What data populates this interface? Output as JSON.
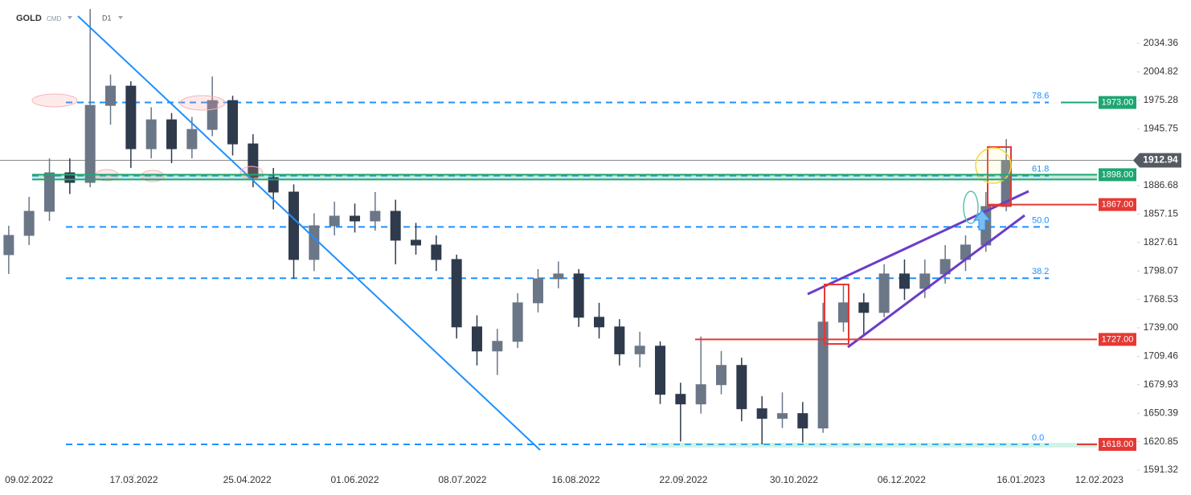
{
  "header": {
    "symbol": "GOLD",
    "market": "CMD",
    "timeframe": "D1"
  },
  "chart_data": {
    "type": "candlestick",
    "x": [
      "02.02.2022",
      "09.02.2022",
      "16.02.2022",
      "23.02.2022",
      "02.03.2022",
      "09.03.2022",
      "16.03.2022",
      "23.03.2022",
      "30.03.2022",
      "06.04.2022",
      "13.04.2022",
      "20.04.2022",
      "27.04.2022",
      "04.05.2022",
      "11.05.2022",
      "18.05.2022",
      "25.05.2022",
      "01.06.2022",
      "08.06.2022",
      "15.06.2022",
      "22.06.2022",
      "29.06.2022",
      "06.07.2022",
      "13.07.2022",
      "20.07.2022",
      "27.07.2022",
      "03.08.2022",
      "10.08.2022",
      "17.08.2022",
      "24.08.2022",
      "31.08.2022",
      "07.09.2022",
      "14.09.2022",
      "21.09.2022",
      "28.09.2022",
      "05.10.2022",
      "12.10.2022",
      "19.10.2022",
      "26.10.2022",
      "02.11.2022",
      "09.11.2022",
      "16.11.2022",
      "23.11.2022",
      "30.11.2022",
      "07.12.2022",
      "14.12.2022",
      "21.12.2022",
      "28.12.2022",
      "04.01.2023",
      "11.01.2023"
    ],
    "open": [
      1815,
      1835,
      1860,
      1900,
      1890,
      1970,
      1990,
      1925,
      1955,
      1925,
      1945,
      1975,
      1930,
      1895,
      1880,
      1810,
      1845,
      1855,
      1850,
      1860,
      1830,
      1825,
      1810,
      1740,
      1715,
      1725,
      1765,
      1790,
      1795,
      1750,
      1740,
      1712,
      1720,
      1670,
      1660,
      1680,
      1700,
      1655,
      1645,
      1650,
      1635,
      1745,
      1765,
      1755,
      1795,
      1780,
      1795,
      1810,
      1825,
      1865
    ],
    "high": [
      1845,
      1875,
      1915,
      1915,
      2070,
      2002,
      1995,
      1968,
      1962,
      1958,
      2000,
      1980,
      1940,
      1905,
      1888,
      1858,
      1870,
      1868,
      1880,
      1872,
      1848,
      1835,
      1815,
      1752,
      1738,
      1775,
      1800,
      1808,
      1800,
      1765,
      1748,
      1735,
      1725,
      1682,
      1730,
      1715,
      1708,
      1668,
      1672,
      1662,
      1765,
      1785,
      1775,
      1805,
      1810,
      1810,
      1825,
      1835,
      1880,
      1935
    ],
    "low": [
      1795,
      1825,
      1850,
      1878,
      1885,
      1950,
      1905,
      1915,
      1910,
      1915,
      1938,
      1918,
      1885,
      1862,
      1790,
      1798,
      1835,
      1838,
      1840,
      1805,
      1815,
      1798,
      1728,
      1700,
      1690,
      1718,
      1755,
      1780,
      1740,
      1728,
      1700,
      1698,
      1660,
      1621,
      1650,
      1670,
      1642,
      1618,
      1635,
      1620,
      1630,
      1735,
      1730,
      1750,
      1768,
      1770,
      1785,
      1798,
      1818,
      1860
    ],
    "close": [
      1835,
      1860,
      1900,
      1890,
      1970,
      1990,
      1925,
      1955,
      1925,
      1945,
      1975,
      1930,
      1895,
      1880,
      1810,
      1845,
      1855,
      1850,
      1860,
      1830,
      1825,
      1810,
      1740,
      1715,
      1725,
      1765,
      1790,
      1795,
      1750,
      1740,
      1712,
      1720,
      1670,
      1660,
      1680,
      1700,
      1655,
      1645,
      1650,
      1635,
      1745,
      1765,
      1755,
      1795,
      1780,
      1795,
      1810,
      1825,
      1865,
      1912.94
    ],
    "up_color": "#6b7687",
    "down_color": "#2f3b4c",
    "xlim": [
      "30.01.2022",
      "25.02.2023"
    ],
    "xticks": [
      "09.02.2022",
      "17.03.2022",
      "25.04.2022",
      "01.06.2022",
      "08.07.2022",
      "16.08.2022",
      "22.09.2022",
      "30.10.2022",
      "06.12.2022",
      "16.01.2023",
      "12.02.2023"
    ],
    "ylim": [
      1587.15,
      2079.41
    ],
    "yticks": [
      2034.36,
      2004.82,
      1975.28,
      1945.75,
      1886.68,
      1857.15,
      1827.61,
      1798.07,
      1768.53,
      {
        "value": 1739,
        "label": "1739.00"
      },
      1709.46,
      1679.93,
      1650.39,
      1620.85,
      1591.32
    ],
    "fib_levels": [
      {
        "label": "78.6",
        "price": 1973
      },
      {
        "label": "61.8",
        "price": 1897
      },
      {
        "label": "50.0",
        "price": 1843.8
      },
      {
        "label": "38.2",
        "price": 1790.5
      },
      {
        "label": "0.0",
        "price": 1618
      }
    ],
    "fib_color": "#1e90ff",
    "levels": [
      {
        "value": 1973,
        "label": "1973.00",
        "color": "#1ea672"
      },
      {
        "value": 1898,
        "label": "1898.00",
        "color": "#1ea672"
      },
      {
        "value": 1867,
        "label": "1867.00",
        "color": "#e53935"
      },
      {
        "value": 1727,
        "label": "1727.00",
        "color": "#e53935"
      },
      {
        "value": 1618,
        "label": "1618.00",
        "color": "#e53935"
      }
    ],
    "last_price": {
      "value": 1912.94,
      "label": "1912.94",
      "color": "#555b63"
    }
  }
}
